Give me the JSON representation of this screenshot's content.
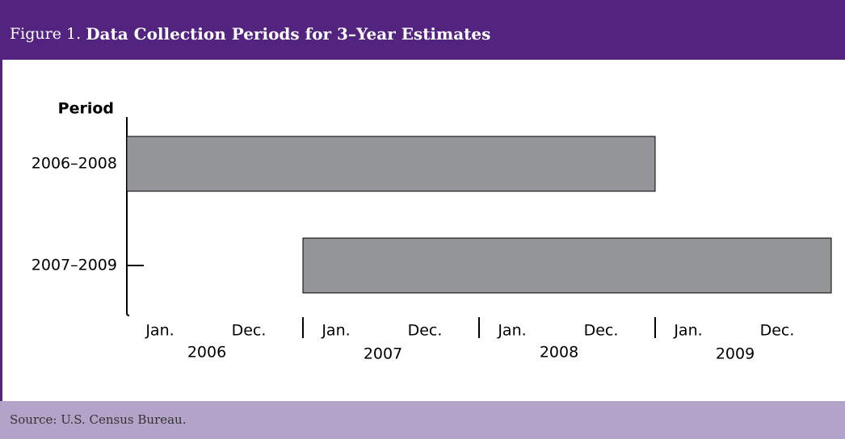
{
  "chart_data": {
    "type": "range-bar",
    "figure_label": "Figure 1.",
    "title": "Data Collection Periods for 3–Year Estimates",
    "y_label": "Period",
    "categories": [
      "2006–2008",
      "2007–2009"
    ],
    "starts": [
      2006,
      2007
    ],
    "ends": [
      2009,
      2010
    ],
    "color": "#939598",
    "xlim": [
      2006,
      2010
    ],
    "years": [
      {
        "label": "2006",
        "from": "Jan.",
        "to": "Dec."
      },
      {
        "label": "2007",
        "from": "Jan.",
        "to": "Dec."
      },
      {
        "label": "2008",
        "from": "Jan.",
        "to": "Dec."
      },
      {
        "label": "2009",
        "from": "Jan.",
        "to": "Dec."
      }
    ],
    "source": "Source: U.S. Census Bureau."
  }
}
